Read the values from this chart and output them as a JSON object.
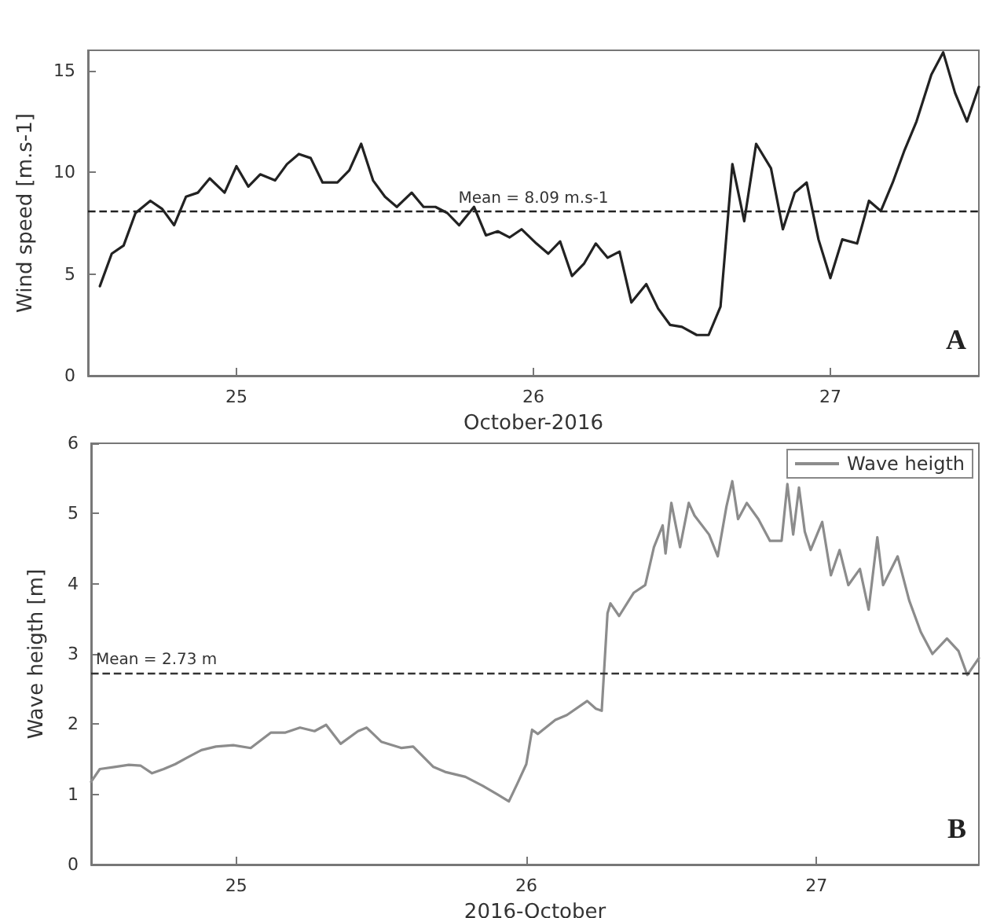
{
  "chart_data": [
    {
      "type": "line",
      "xlabel": "October-2016",
      "ylabel": "Wind speed [m.s-1]",
      "xlim": [
        24.5,
        27.5
      ],
      "xticks": [
        25,
        26,
        27
      ],
      "ylim": [
        0,
        16
      ],
      "yticks": [
        0,
        5,
        10,
        15
      ],
      "grid": false,
      "legend": false,
      "line_style": "solid",
      "series": [
        {
          "color": "#222222",
          "x": [
            24.54,
            24.58,
            24.62,
            24.66,
            24.71,
            24.75,
            24.79,
            24.83,
            24.87,
            24.91,
            24.96,
            25.0,
            25.04,
            25.08,
            25.13,
            25.17,
            25.21,
            25.25,
            25.29,
            25.34,
            25.38,
            25.42,
            25.46,
            25.5,
            25.54,
            25.59,
            25.63,
            25.67,
            25.71,
            25.75,
            25.8,
            25.84,
            25.88,
            25.92,
            25.96,
            26.01,
            26.05,
            26.09,
            26.13,
            26.17,
            26.21,
            26.25,
            26.29,
            26.33,
            26.38,
            26.42,
            26.46,
            26.5,
            26.55,
            26.59,
            26.63,
            26.67,
            26.71,
            26.75,
            26.8,
            26.84,
            26.88,
            26.92,
            26.96,
            27.0,
            27.04,
            27.09,
            27.13,
            27.17,
            27.21,
            27.25,
            27.29,
            27.34,
            27.38,
            27.42,
            27.46,
            27.5
          ],
          "values": [
            4.4,
            6.0,
            6.4,
            8.0,
            8.6,
            8.2,
            7.4,
            8.8,
            9.0,
            9.7,
            9.0,
            10.3,
            9.3,
            9.9,
            9.6,
            10.4,
            10.9,
            10.7,
            9.5,
            9.5,
            10.1,
            11.4,
            9.6,
            8.8,
            8.3,
            9.0,
            8.3,
            8.3,
            8.0,
            7.4,
            8.3,
            6.9,
            7.1,
            6.8,
            7.2,
            6.5,
            6.0,
            6.6,
            4.9,
            5.5,
            6.5,
            5.8,
            6.1,
            3.6,
            4.5,
            3.3,
            2.5,
            2.4,
            2.0,
            2.0,
            3.4,
            10.4,
            7.6,
            11.4,
            10.2,
            7.2,
            9.0,
            9.5,
            6.7,
            4.8,
            6.7,
            6.5,
            8.6,
            8.1,
            9.5,
            11.1,
            12.5,
            14.8,
            15.9,
            13.9,
            12.5,
            14.2
          ]
        }
      ],
      "ref_lines": [
        {
          "axis": "y",
          "value": 8.09,
          "label": "Mean = 8.09 m.s-1",
          "color": "#222222",
          "line_style": "dashed"
        }
      ],
      "annotations": [
        "A"
      ]
    },
    {
      "type": "line",
      "xlabel": "2016-October",
      "ylabel": "Wave heigth [m]",
      "xlim": [
        24.5,
        27.56
      ],
      "xticks": [
        25,
        26,
        27
      ],
      "ylim": [
        0,
        6
      ],
      "yticks": [
        0,
        1,
        2,
        3,
        4,
        5,
        6
      ],
      "grid": false,
      "legend": "top right",
      "line_style": "solid",
      "series": [
        {
          "name": "Wave heigth",
          "color": "#8c8c8c",
          "x": [
            24.5,
            24.53,
            24.58,
            24.63,
            24.67,
            24.71,
            24.75,
            24.79,
            24.83,
            24.88,
            24.93,
            24.99,
            25.05,
            25.12,
            25.17,
            25.22,
            25.27,
            25.31,
            25.36,
            25.42,
            25.45,
            25.5,
            25.57,
            25.61,
            25.68,
            25.72,
            25.79,
            25.85,
            25.9,
            25.94,
            25.97,
            26.0,
            26.02,
            26.04,
            26.1,
            26.14,
            26.21,
            26.24,
            26.26,
            26.28,
            26.29,
            26.32,
            26.37,
            26.41,
            26.44,
            26.47,
            26.48,
            26.5,
            26.53,
            26.56,
            26.58,
            26.63,
            26.66,
            26.69,
            26.71,
            26.73,
            26.76,
            26.8,
            26.84,
            26.88,
            26.9,
            26.92,
            26.94,
            26.96,
            26.98,
            27.02,
            27.05,
            27.08,
            27.11,
            27.15,
            27.18,
            27.21,
            27.23,
            27.28,
            27.32,
            27.36,
            27.4,
            27.45,
            27.49,
            27.52,
            27.56
          ],
          "values": [
            1.18,
            1.36,
            1.39,
            1.42,
            1.41,
            1.3,
            1.36,
            1.43,
            1.52,
            1.63,
            1.68,
            1.7,
            1.66,
            1.88,
            1.88,
            1.95,
            1.9,
            1.99,
            1.72,
            1.9,
            1.95,
            1.75,
            1.66,
            1.68,
            1.39,
            1.32,
            1.25,
            1.12,
            1.0,
            0.9,
            1.16,
            1.43,
            1.92,
            1.86,
            2.06,
            2.13,
            2.33,
            2.22,
            2.19,
            3.58,
            3.72,
            3.54,
            3.87,
            3.98,
            4.52,
            4.83,
            4.43,
            5.15,
            4.52,
            5.15,
            4.97,
            4.7,
            4.39,
            5.1,
            5.46,
            4.92,
            5.15,
            4.92,
            4.61,
            4.61,
            5.42,
            4.7,
            5.37,
            4.74,
            4.48,
            4.88,
            4.12,
            4.48,
            3.98,
            4.21,
            3.63,
            4.66,
            3.98,
            4.39,
            3.76,
            3.31,
            3.0,
            3.22,
            3.04,
            2.7,
            2.94
          ]
        }
      ],
      "ref_lines": [
        {
          "axis": "y",
          "value": 2.73,
          "label": "Mean = 2.73 m",
          "color": "#333333",
          "line_style": "dashed"
        }
      ],
      "annotations": [
        "B"
      ]
    }
  ]
}
